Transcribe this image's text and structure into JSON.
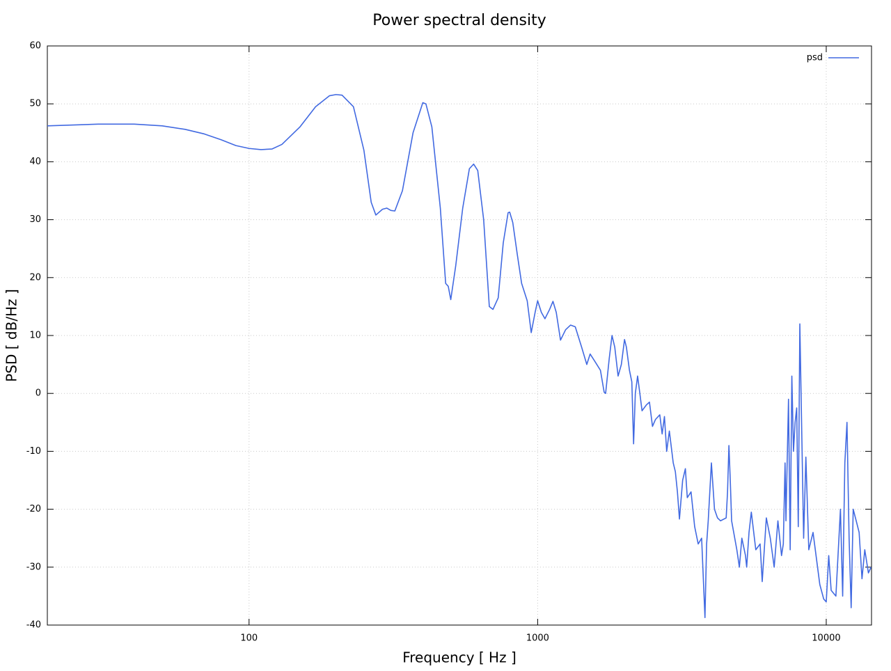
{
  "chart_data": {
    "type": "line",
    "title": "Power spectral density",
    "xlabel": "Frequency [ Hz ]",
    "ylabel": "PSD [ dB/Hz ]",
    "xscale": "log",
    "grid": true,
    "legend": "top-right",
    "xlim": [
      20,
      14350
    ],
    "ylim": [
      -40,
      60
    ],
    "xticks": [
      100,
      1000,
      10000
    ],
    "yticks": [
      -40,
      -30,
      -20,
      -10,
      0,
      10,
      20,
      30,
      40,
      50,
      60
    ],
    "x": [
      20,
      30,
      40,
      50,
      60,
      70,
      80,
      90,
      100,
      110,
      120,
      130,
      150,
      170,
      190,
      200,
      210,
      230,
      250,
      265,
      275,
      290,
      300,
      310,
      320,
      340,
      370,
      400,
      410,
      430,
      460,
      480,
      490,
      500,
      520,
      550,
      580,
      600,
      620,
      650,
      680,
      700,
      730,
      760,
      790,
      800,
      820,
      850,
      880,
      920,
      950,
      980,
      1000,
      1030,
      1060,
      1100,
      1130,
      1160,
      1200,
      1250,
      1300,
      1350,
      1420,
      1480,
      1520,
      1580,
      1650,
      1700,
      1720,
      1770,
      1810,
      1850,
      1900,
      1950,
      2000,
      2030,
      2080,
      2120,
      2150,
      2180,
      2220,
      2260,
      2300,
      2380,
      2440,
      2500,
      2560,
      2650,
      2700,
      2750,
      2800,
      2860,
      2950,
      3000,
      3050,
      3100,
      3180,
      3250,
      3300,
      3400,
      3500,
      3600,
      3700,
      3800,
      3850,
      3900,
      4000,
      4050,
      4100,
      4200,
      4300,
      4500,
      4550,
      4600,
      4650,
      4700,
      4900,
      5000,
      5100,
      5250,
      5300,
      5400,
      5500,
      5700,
      5900,
      6000,
      6200,
      6400,
      6600,
      6800,
      7000,
      7100,
      7200,
      7250,
      7400,
      7500,
      7600,
      7700,
      7800,
      7900,
      8000,
      8100,
      8200,
      8350,
      8500,
      8700,
      9000,
      9500,
      9800,
      10000,
      10200,
      10400,
      10800,
      11200,
      11400,
      11600,
      11800,
      12000,
      12200,
      12400,
      12700,
      13000,
      13300,
      13600,
      14000,
      14300
    ],
    "series": [
      {
        "name": "psd",
        "color": "#4169e1",
        "values": [
          46.2,
          46.5,
          46.5,
          46.2,
          45.6,
          44.8,
          43.8,
          42.8,
          42.3,
          42.1,
          42.2,
          43,
          46,
          49.5,
          51.4,
          51.6,
          51.5,
          49.5,
          42,
          33,
          30.8,
          31.8,
          32,
          31.6,
          31.5,
          35,
          45,
          50.2,
          50,
          46,
          32,
          19,
          18.5,
          16.2,
          22,
          32,
          38.8,
          39.6,
          38.5,
          30,
          15,
          14.5,
          16.5,
          26,
          31.2,
          31.3,
          29.5,
          24,
          19,
          16,
          10.5,
          14,
          16,
          14,
          12.9,
          14.5,
          15.9,
          14,
          9.2,
          11,
          11.8,
          11.5,
          8,
          5,
          6.8,
          5.5,
          4,
          0.2,
          0,
          6,
          10,
          8,
          3,
          5,
          9.3,
          8,
          4,
          2,
          -8.7,
          0,
          3,
          0,
          -3,
          -2,
          -1.5,
          -5.7,
          -4.5,
          -3.7,
          -7,
          -4,
          -10,
          -6.5,
          -12,
          -13.5,
          -17,
          -21.7,
          -15,
          -13,
          -18,
          -17,
          -23,
          -26,
          -25,
          -38.7,
          -26,
          -22,
          -12,
          -16,
          -20,
          -21.5,
          -22,
          -21.5,
          -17,
          -9,
          -15,
          -22,
          -27,
          -30,
          -25,
          -28,
          -30,
          -24,
          -20.5,
          -27,
          -26,
          -32.5,
          -21.5,
          -25,
          -30,
          -22,
          -28,
          -26,
          -12,
          -22,
          -1,
          -27,
          3,
          -10,
          -5,
          -2.5,
          -23,
          12,
          -3,
          -25,
          -11,
          -27,
          -24,
          -33,
          -35.5,
          -36,
          -28,
          -34,
          -35,
          -20,
          -35,
          -12,
          -5,
          -25,
          -37,
          -20,
          -22,
          -24,
          -32,
          -27,
          -31,
          -30
        ]
      }
    ]
  }
}
